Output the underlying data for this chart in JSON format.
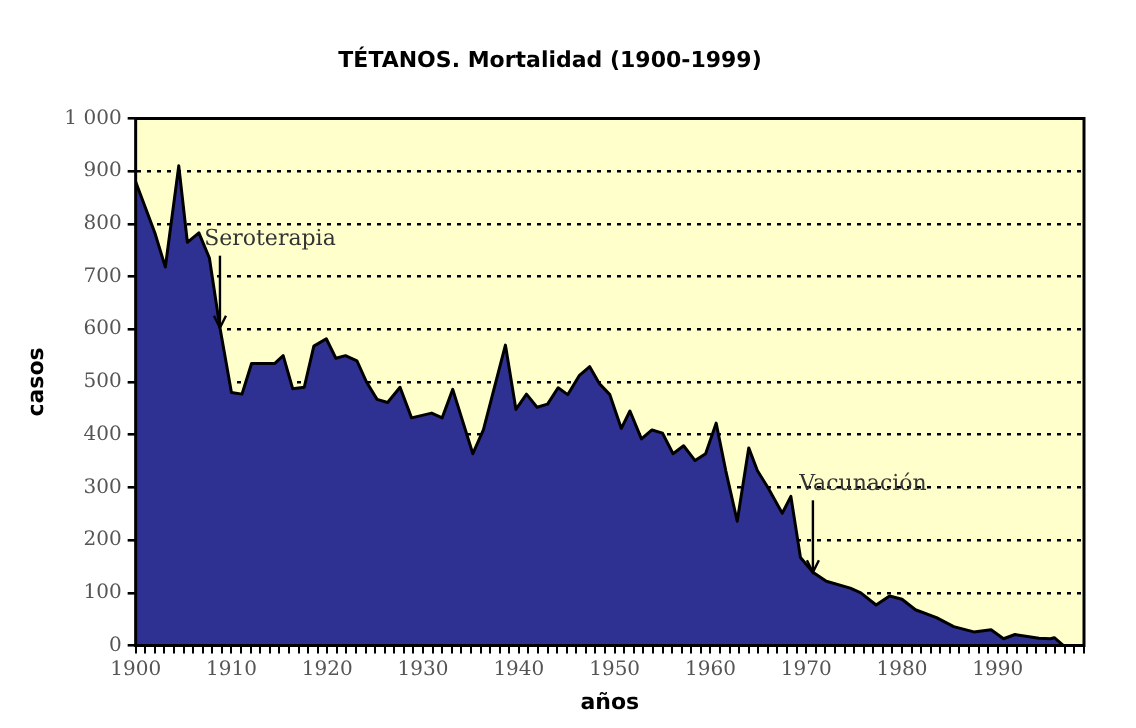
{
  "chart_data": {
    "type": "area",
    "title": "TÉTANOS. Mortalidad (1900-1999)",
    "xlabel": "años",
    "ylabel": "casos",
    "x": [
      1900,
      1902,
      1903.1,
      1904.5,
      1905.4,
      1906.6,
      1907.7,
      1908.8,
      1910,
      1911.1,
      1912.1,
      1914.5,
      1915.4,
      1916.4,
      1917.6,
      1918.6,
      1919.9,
      1920.9,
      1921.9,
      1923.1,
      1924.1,
      1925.2,
      1926.3,
      1927.6,
      1928.8,
      1930.9,
      1932,
      1933.1,
      1935.2,
      1936.3,
      1938.6,
      1939.7,
      1940.8,
      1941.9,
      1943,
      1944.1,
      1945.1,
      1946.3,
      1947.4,
      1948.4,
      1949.5,
      1950.7,
      1951.6,
      1952.8,
      1953.9,
      1955,
      1956.1,
      1957.2,
      1958.4,
      1959.5,
      1960.6,
      1961.6,
      1962.8,
      1964,
      1964.9,
      1966,
      1967.5,
      1968.4,
      1969.4,
      1970.7,
      1972.1,
      1974.6,
      1975.7,
      1977.3,
      1978.7,
      1980,
      1981.4,
      1983.6,
      1985.4,
      1987.5,
      1989.3,
      1990.6,
      1991.8,
      1994.3,
      1995.5,
      1995.9,
      1996.8
    ],
    "series": [
      {
        "color": "#2e3192",
        "values": [
          880,
          783,
          718,
          910,
          765,
          783,
          735,
          603,
          480,
          477,
          535,
          535,
          550,
          487,
          490,
          568,
          582,
          545,
          550,
          540,
          500,
          467,
          461,
          490,
          432,
          441,
          432,
          486,
          364,
          409,
          570,
          448,
          477,
          452,
          458,
          489,
          476,
          512,
          529,
          497,
          476,
          412,
          445,
          392,
          409,
          403,
          364,
          379,
          351,
          364,
          422,
          332,
          236,
          375,
          332,
          300,
          251,
          283,
          167,
          139,
          122,
          109,
          100,
          77,
          94,
          88,
          68,
          53,
          36,
          26,
          30,
          13,
          21,
          14,
          13,
          15,
          1
        ]
      }
    ],
    "xlim": [
      1900,
      1999
    ],
    "xticks": [
      1900,
      {
        "value": 1901,
        "label": null
      },
      {
        "value": 1902,
        "label": null
      },
      {
        "value": 1903,
        "label": null
      },
      {
        "value": 1904,
        "label": null
      },
      {
        "value": 1905,
        "label": null
      },
      {
        "value": 1906,
        "label": null
      },
      {
        "value": 1907,
        "label": null
      },
      {
        "value": 1908,
        "label": null
      },
      {
        "value": 1909,
        "label": null
      },
      1910,
      {
        "value": 1911,
        "label": null
      },
      {
        "value": 1912,
        "label": null
      },
      {
        "value": 1913,
        "label": null
      },
      {
        "value": 1914,
        "label": null
      },
      {
        "value": 1915,
        "label": null
      },
      {
        "value": 1916,
        "label": null
      },
      {
        "value": 1917,
        "label": null
      },
      {
        "value": 1918,
        "label": null
      },
      {
        "value": 1919,
        "label": null
      },
      1920,
      {
        "value": 1921,
        "label": null
      },
      {
        "value": 1922,
        "label": null
      },
      {
        "value": 1923,
        "label": null
      },
      {
        "value": 1924,
        "label": null
      },
      {
        "value": 1925,
        "label": null
      },
      {
        "value": 1926,
        "label": null
      },
      {
        "value": 1927,
        "label": null
      },
      {
        "value": 1928,
        "label": null
      },
      {
        "value": 1929,
        "label": null
      },
      1930,
      {
        "value": 1931,
        "label": null
      },
      {
        "value": 1932,
        "label": null
      },
      {
        "value": 1933,
        "label": null
      },
      {
        "value": 1934,
        "label": null
      },
      {
        "value": 1935,
        "label": null
      },
      {
        "value": 1936,
        "label": null
      },
      {
        "value": 1937,
        "label": null
      },
      {
        "value": 1938,
        "label": null
      },
      {
        "value": 1939,
        "label": null
      },
      1940,
      {
        "value": 1941,
        "label": null
      },
      {
        "value": 1942,
        "label": null
      },
      {
        "value": 1943,
        "label": null
      },
      {
        "value": 1944,
        "label": null
      },
      {
        "value": 1945,
        "label": null
      },
      {
        "value": 1946,
        "label": null
      },
      {
        "value": 1947,
        "label": null
      },
      {
        "value": 1948,
        "label": null
      },
      {
        "value": 1949,
        "label": null
      },
      1950,
      {
        "value": 1951,
        "label": null
      },
      {
        "value": 1952,
        "label": null
      },
      {
        "value": 1953,
        "label": null
      },
      {
        "value": 1954,
        "label": null
      },
      {
        "value": 1955,
        "label": null
      },
      {
        "value": 1956,
        "label": null
      },
      {
        "value": 1957,
        "label": null
      },
      {
        "value": 1958,
        "label": null
      },
      {
        "value": 1959,
        "label": null
      },
      1960,
      {
        "value": 1961,
        "label": null
      },
      {
        "value": 1962,
        "label": null
      },
      {
        "value": 1963,
        "label": null
      },
      {
        "value": 1964,
        "label": null
      },
      {
        "value": 1965,
        "label": null
      },
      {
        "value": 1966,
        "label": null
      },
      {
        "value": 1967,
        "label": null
      },
      {
        "value": 1968,
        "label": null
      },
      {
        "value": 1969,
        "label": null
      },
      1970,
      {
        "value": 1971,
        "label": null
      },
      {
        "value": 1972,
        "label": null
      },
      {
        "value": 1973,
        "label": null
      },
      {
        "value": 1974,
        "label": null
      },
      {
        "value": 1975,
        "label": null
      },
      {
        "value": 1976,
        "label": null
      },
      {
        "value": 1977,
        "label": null
      },
      {
        "value": 1978,
        "label": null
      },
      {
        "value": 1979,
        "label": null
      },
      1980,
      {
        "value": 1981,
        "label": null
      },
      {
        "value": 1982,
        "label": null
      },
      {
        "value": 1983,
        "label": null
      },
      {
        "value": 1984,
        "label": null
      },
      {
        "value": 1985,
        "label": null
      },
      {
        "value": 1986,
        "label": null
      },
      {
        "value": 1987,
        "label": null
      },
      {
        "value": 1988,
        "label": null
      },
      {
        "value": 1989,
        "label": null
      },
      1990,
      {
        "value": 1991,
        "label": null
      },
      {
        "value": 1992,
        "label": null
      },
      {
        "value": 1993,
        "label": null
      },
      {
        "value": 1994,
        "label": null
      },
      {
        "value": 1995,
        "label": null
      },
      {
        "value": 1996,
        "label": null
      },
      {
        "value": 1997,
        "label": null
      },
      {
        "value": 1998,
        "label": null
      },
      {
        "value": 1999,
        "label": null
      }
    ],
    "ylim": [
      0,
      1000
    ],
    "yticks": [
      0,
      100,
      200,
      300,
      400,
      500,
      600,
      700,
      800,
      900,
      {
        "value": 1000,
        "label": "1 000"
      }
    ],
    "grid": "y",
    "annotations": [
      {
        "text": "Seroterapia",
        "x": 1908.8,
        "y": 603
      },
      {
        "text": "Vacunación",
        "x": 1970.7,
        "y": 139
      }
    ]
  }
}
